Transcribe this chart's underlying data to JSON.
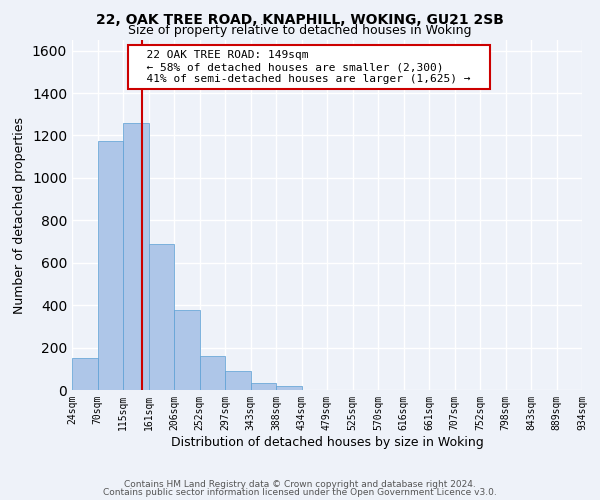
{
  "title1": "22, OAK TREE ROAD, KNAPHILL, WOKING, GU21 2SB",
  "title2": "Size of property relative to detached houses in Woking",
  "xlabel": "Distribution of detached houses by size in Woking",
  "ylabel": "Number of detached properties",
  "bin_edges": [
    24,
    70,
    115,
    161,
    206,
    252,
    297,
    343,
    388,
    434,
    479,
    525,
    570,
    616,
    661,
    707,
    752,
    798,
    843,
    889,
    934
  ],
  "bar_heights": [
    150,
    1175,
    1260,
    690,
    375,
    160,
    90,
    35,
    20,
    0,
    0,
    0,
    0,
    0,
    0,
    0,
    0,
    0,
    0,
    0
  ],
  "bar_color": "#aec6e8",
  "bar_edge_color": "#5a9fd4",
  "vline_x": 149,
  "vline_color": "#cc0000",
  "ylim": [
    0,
    1650
  ],
  "yticks": [
    0,
    200,
    400,
    600,
    800,
    1000,
    1200,
    1400,
    1600
  ],
  "annotation_title": "22 OAK TREE ROAD: 149sqm",
  "annotation_line1": "← 58% of detached houses are smaller (2,300)",
  "annotation_line2": "41% of semi-detached houses are larger (1,625) →",
  "annotation_box_color": "#ffffff",
  "annotation_box_edge": "#cc0000",
  "footer1": "Contains HM Land Registry data © Crown copyright and database right 2024.",
  "footer2": "Contains public sector information licensed under the Open Government Licence v3.0.",
  "tick_labels": [
    "24sqm",
    "70sqm",
    "115sqm",
    "161sqm",
    "206sqm",
    "252sqm",
    "297sqm",
    "343sqm",
    "388sqm",
    "434sqm",
    "479sqm",
    "525sqm",
    "570sqm",
    "616sqm",
    "661sqm",
    "707sqm",
    "752sqm",
    "798sqm",
    "843sqm",
    "889sqm",
    "934sqm"
  ],
  "background_color": "#eef2f9",
  "grid_color": "#ffffff"
}
